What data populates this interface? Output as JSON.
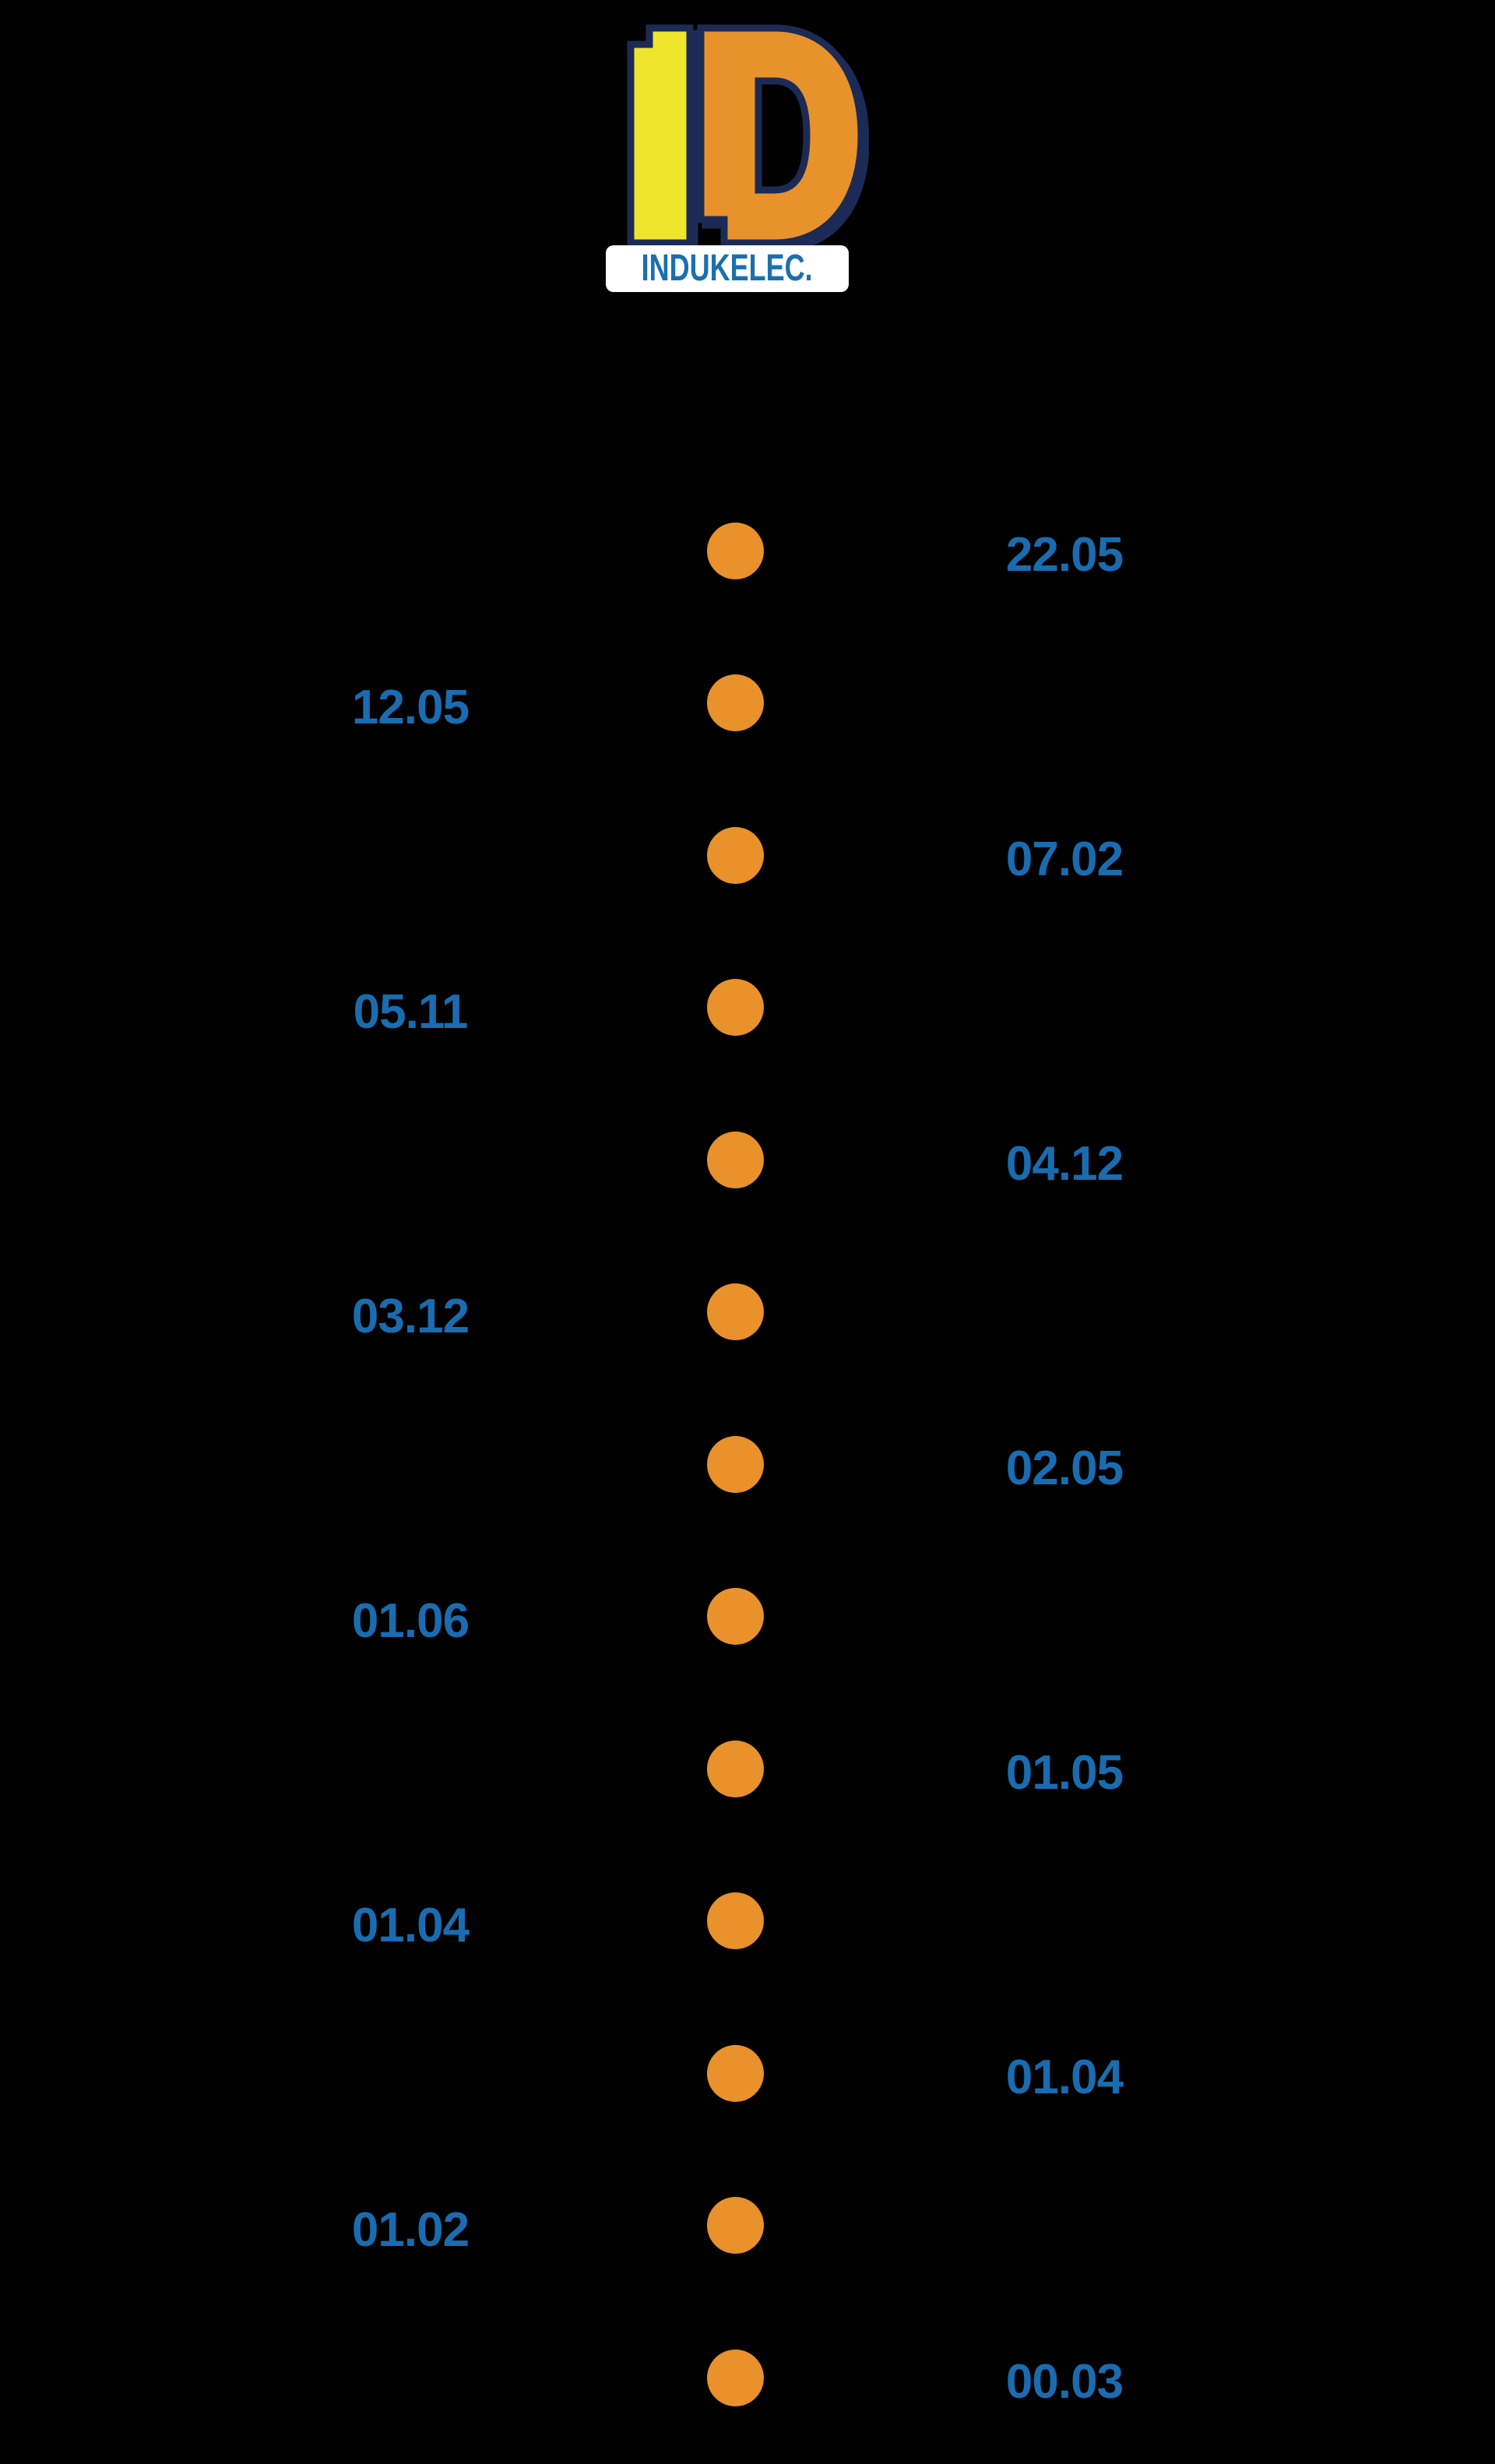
{
  "page": {
    "background_color": "#000000"
  },
  "logo": {
    "letter_i": "I",
    "letter_d": "D",
    "wordmark": "INDUKELEC.",
    "colors": {
      "i_fill": "#efe52c",
      "d_fill": "#e8922b",
      "outline": "#1c2b55",
      "box_background": "#ffffff",
      "wordmark_text": "#1b6faf"
    }
  },
  "timeline": {
    "dot_color": "#e9912b",
    "label_color": "#1a6cb0",
    "items": [
      {
        "value": "22.05",
        "side": "right"
      },
      {
        "value": "12.05",
        "side": "left"
      },
      {
        "value": "07.02",
        "side": "right"
      },
      {
        "value": "05.11",
        "side": "left"
      },
      {
        "value": "04.12",
        "side": "right"
      },
      {
        "value": "03.12",
        "side": "left"
      },
      {
        "value": "02.05",
        "side": "right"
      },
      {
        "value": "01.06",
        "side": "left"
      },
      {
        "value": "01.05",
        "side": "right"
      },
      {
        "value": "01.04",
        "side": "left"
      },
      {
        "value": "01.04",
        "side": "right"
      },
      {
        "value": "01.02",
        "side": "left"
      },
      {
        "value": "00.03",
        "side": "right"
      }
    ]
  }
}
